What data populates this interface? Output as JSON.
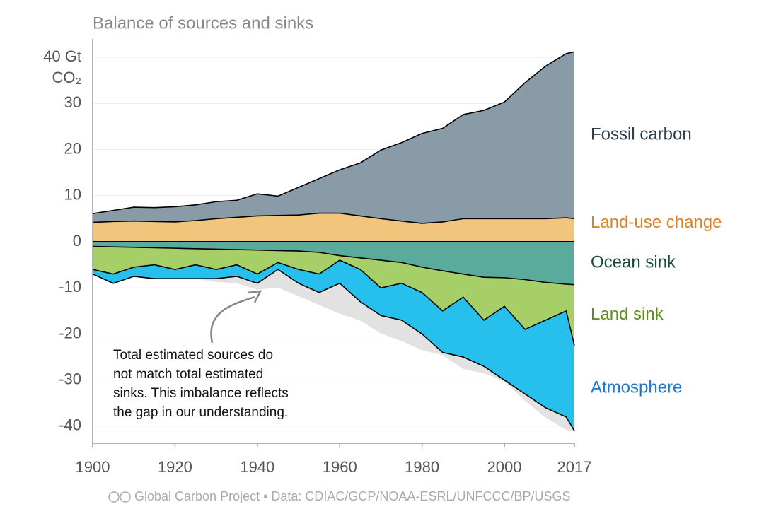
{
  "chart_data": {
    "type": "stacked_area",
    "title": "Balance of sources and sinks",
    "y_unit": "CO₂",
    "annotation": [
      "Total estimated sources do",
      "not match total estimated",
      "sinks. This imbalance reflects",
      "the gap in our understanding."
    ],
    "source": "Global Carbon Project • Data: CDIAC/GCP/NOAA-ESRL/UNFCCC/BP/USGS",
    "x": [
      1900,
      1905,
      1910,
      1915,
      1920,
      1925,
      1930,
      1935,
      1940,
      1945,
      1950,
      1955,
      1960,
      1965,
      1970,
      1975,
      1980,
      1985,
      1990,
      1995,
      2000,
      2005,
      2010,
      2015,
      2017
    ],
    "xlim": [
      1900,
      2017
    ],
    "xticks": [
      1900,
      1920,
      1940,
      1960,
      1980,
      2000,
      2017
    ],
    "ylim": [
      -44,
      44
    ],
    "yticks": [
      -40,
      -30,
      -20,
      -10,
      0,
      10,
      20,
      30,
      {
        "value": 40,
        "label": "40 Gt"
      }
    ],
    "grid": true,
    "imbalance_color": "#e2e2e2",
    "series": [
      {
        "name": "Land-use change",
        "color": "#f2c57c",
        "label_color": "#d9822b",
        "values": [
          4.2,
          4.4,
          4.5,
          4.4,
          4.3,
          4.6,
          5.0,
          5.3,
          5.6,
          5.7,
          5.8,
          6.2,
          6.2,
          5.6,
          5.0,
          4.5,
          4.0,
          4.3,
          5.0,
          5.0,
          5.0,
          5.0,
          5.0,
          5.2,
          5.0
        ]
      },
      {
        "name": "Fossil carbon",
        "color": "#8a9ba8",
        "label_color": "#2d3e4f",
        "values": [
          1.9,
          2.4,
          3.0,
          3.0,
          3.3,
          3.4,
          3.7,
          3.7,
          4.8,
          4.2,
          6.0,
          7.5,
          9.4,
          11.5,
          14.9,
          17.0,
          19.5,
          20.3,
          22.6,
          23.5,
          25.3,
          29.5,
          33.1,
          35.6,
          36.2
        ]
      },
      {
        "name": "Ocean sink",
        "color": "#5aab9b",
        "label_color": "#17493d",
        "values": [
          -1.0,
          -1.1,
          -1.2,
          -1.3,
          -1.4,
          -1.5,
          -1.6,
          -1.7,
          -1.8,
          -1.9,
          -2.0,
          -2.3,
          -3.0,
          -3.5,
          -4.0,
          -4.5,
          -5.5,
          -6.3,
          -7.0,
          -7.7,
          -7.8,
          -8.2,
          -8.8,
          -9.2,
          -9.3
        ]
      },
      {
        "name": "Land sink",
        "color": "#a6cf68",
        "label_color": "#5a8f1c",
        "values": [
          -5.0,
          -5.9,
          -4.3,
          -3.7,
          -4.6,
          -3.5,
          -4.4,
          -3.3,
          -5.2,
          -2.6,
          -4.0,
          -4.7,
          -1.0,
          -2.5,
          -6.0,
          -4.5,
          -5.5,
          -8.7,
          -5.0,
          -9.3,
          -6.2,
          -10.8,
          -8.2,
          -5.8,
          -13.2
        ]
      },
      {
        "name": "Atmosphere",
        "color": "#27c0ec",
        "label_color": "#1a79d6",
        "values": [
          -1.0,
          -2.0,
          -2.0,
          -3.0,
          -2.0,
          -3.0,
          -2.0,
          -2.5,
          -2.0,
          -1.5,
          -3.0,
          -4.0,
          -5.0,
          -7.0,
          -6.0,
          -8.0,
          -9.0,
          -9.0,
          -13.0,
          -10.0,
          -16.0,
          -14.0,
          -19.0,
          -23.0,
          -18.5
        ]
      }
    ]
  }
}
